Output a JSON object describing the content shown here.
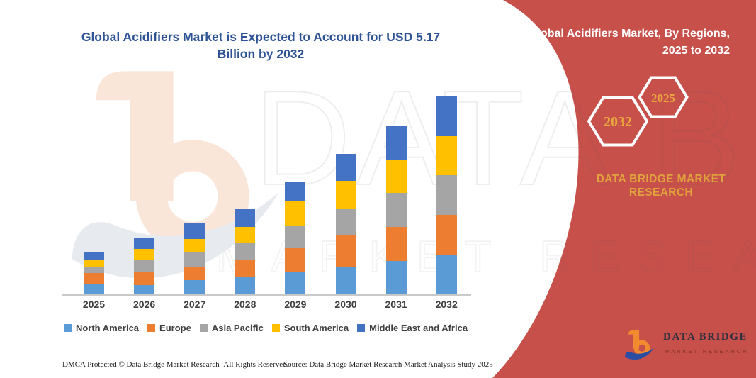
{
  "main_title_lines": [
    "Global Acidifiers Market is Expected to Account for USD 5.17",
    "Billion by 2032"
  ],
  "banner": {
    "title_lines": [
      "Global Acidifiers Market, By Regions,",
      "2025 to 2032"
    ],
    "hexagons": [
      {
        "label": "2032"
      },
      {
        "label": "2025"
      }
    ],
    "brand_lines": [
      "DATA BRIDGE MARKET",
      "RESEARCH"
    ]
  },
  "colors": {
    "accent_red": "#C8504B",
    "gold": "#DFA23C",
    "title_blue": "#2F5496",
    "axis_label": "#3F3F3F"
  },
  "chart_data": {
    "type": "bar",
    "stacked": true,
    "unit": "USD Billion",
    "title": "Global Acidifiers Market is Expected to Account for USD 5.17 Billion by 2032",
    "categories": [
      "2025",
      "2026",
      "2027",
      "2028",
      "2029",
      "2030",
      "2031",
      "2032"
    ],
    "series": [
      {
        "name": "North America",
        "color": "#5B9BD5",
        "values": [
          0.26,
          0.25,
          0.38,
          0.47,
          0.6,
          0.7,
          0.88,
          1.04
        ]
      },
      {
        "name": "Europe",
        "color": "#ED7D31",
        "values": [
          0.3,
          0.34,
          0.32,
          0.44,
          0.62,
          0.84,
          0.88,
          1.03
        ]
      },
      {
        "name": "Asia Pacific",
        "color": "#A5A5A5",
        "values": [
          0.15,
          0.32,
          0.41,
          0.45,
          0.56,
          0.71,
          0.9,
          1.04
        ]
      },
      {
        "name": "South America",
        "color": "#FFC000",
        "values": [
          0.19,
          0.28,
          0.34,
          0.41,
          0.65,
          0.71,
          0.87,
          1.03
        ]
      },
      {
        "name": "Middle East and Africa",
        "color": "#4472C4",
        "values": [
          0.21,
          0.29,
          0.42,
          0.47,
          0.52,
          0.72,
          0.89,
          1.03
        ]
      }
    ],
    "totals": [
      1.11,
      1.48,
      1.87,
      2.24,
      2.95,
      3.68,
      4.42,
      5.17
    ],
    "ylim": [
      0,
      5.2
    ],
    "grid": false,
    "legend_position": "bottom"
  },
  "watermarks": {
    "text1": "DATA BRIDGE",
    "text2": "MARKET RESEARCH"
  },
  "footer": {
    "dmca": "DMCA Protected © Data Bridge Market Research-  All Rights Reserved.",
    "source": "Source: Data Bridge Market Research  Market Analysis Study 2025"
  },
  "logo": {
    "text": "DATA BRIDGE",
    "subtext": "MARKET RESEARCH"
  }
}
